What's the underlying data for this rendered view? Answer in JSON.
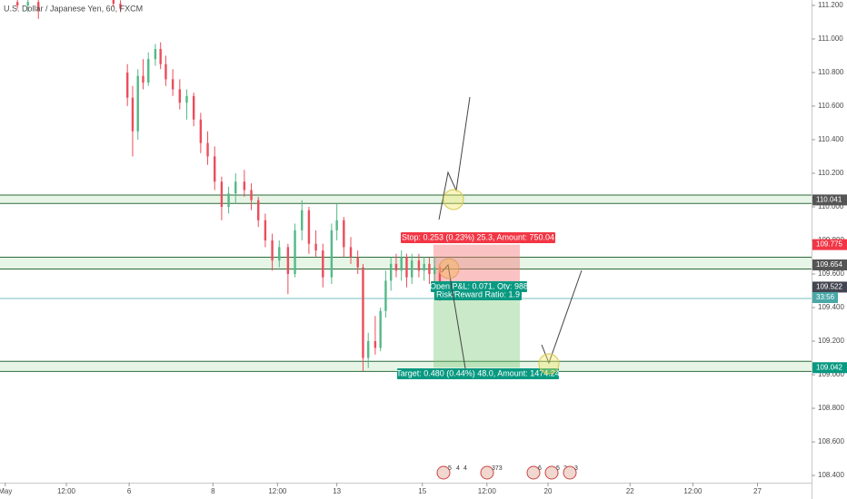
{
  "chart_data": {
    "type": "candlestick",
    "title": "U.S. Dollar / Japanese Yen, 60, FXCM",
    "xlim": [
      0,
      465
    ],
    "xticks": [
      {
        "value": 3,
        "label": "May"
      },
      {
        "value": 38,
        "label": "12:00"
      },
      {
        "value": 74,
        "label": "6"
      },
      {
        "value": 122,
        "label": "8"
      },
      {
        "value": 159,
        "label": "12:00"
      },
      {
        "value": 193,
        "label": "13"
      },
      {
        "value": 242,
        "label": "15"
      },
      {
        "value": 279,
        "label": "12:00"
      },
      {
        "value": 314,
        "label": "20"
      },
      {
        "value": 361,
        "label": "22"
      },
      {
        "value": 397,
        "label": "12:00"
      },
      {
        "value": 434,
        "label": "27"
      }
    ],
    "ylim": [
      108.357,
      111.232
    ],
    "yticks": [
      {
        "value": 111.2,
        "label": "111.200"
      },
      {
        "value": 111.0,
        "label": "111.000"
      },
      {
        "value": 110.8,
        "label": "110.800"
      },
      {
        "value": 110.6,
        "label": "110.600"
      },
      {
        "value": 110.4,
        "label": "110.400"
      },
      {
        "value": 110.2,
        "label": "110.200"
      },
      {
        "value": 110.0,
        "label": "110.000"
      },
      {
        "value": 109.8,
        "label": "109.800"
      },
      {
        "value": 109.6,
        "label": "109.600"
      },
      {
        "value": 109.4,
        "label": "109.400"
      },
      {
        "value": 109.2,
        "label": "109.200"
      },
      {
        "value": 109.0,
        "label": "109.000"
      },
      {
        "value": 108.8,
        "label": "108.800"
      },
      {
        "value": 108.6,
        "label": "108.600"
      },
      {
        "value": 108.4,
        "label": "108.400"
      }
    ],
    "up_color": "#53b987",
    "down_color": "#eb4d5c",
    "x": [
      10,
      16,
      22,
      65,
      69,
      73,
      76,
      79,
      82,
      85,
      89,
      92,
      95,
      99,
      103,
      107,
      111,
      115,
      119,
      123,
      127,
      131,
      135,
      140,
      144,
      148,
      152,
      156,
      160,
      165,
      169,
      173,
      177,
      181,
      185,
      190,
      193,
      197,
      201,
      205,
      208,
      211,
      215,
      218,
      221,
      224,
      227,
      230,
      233,
      236,
      240,
      243,
      246,
      249,
      252
    ],
    "open": [
      111.22,
      111.2,
      111.22,
      111.24,
      111.21,
      110.8,
      110.65,
      110.45,
      110.78,
      110.74,
      110.88,
      110.94,
      110.85,
      110.76,
      110.7,
      110.62,
      110.66,
      110.52,
      110.38,
      110.3,
      110.15,
      110.0,
      110.08,
      110.15,
      110.1,
      110.04,
      109.92,
      109.8,
      109.68,
      109.76,
      109.6,
      109.86,
      109.98,
      109.78,
      109.74,
      109.58,
      109.86,
      109.92,
      109.76,
      109.7,
      109.64,
      109.1,
      109.2,
      109.16,
      109.38,
      109.56,
      109.66,
      109.62,
      109.7,
      109.58,
      109.68,
      109.62,
      109.66,
      109.6,
      109.64
    ],
    "high": [
      111.26,
      111.24,
      111.25,
      111.26,
      111.23,
      110.85,
      110.72,
      110.82,
      110.88,
      110.92,
      110.97,
      110.98,
      110.9,
      110.82,
      110.76,
      110.7,
      110.68,
      110.56,
      110.45,
      110.36,
      110.18,
      110.12,
      110.2,
      110.22,
      110.14,
      110.06,
      109.96,
      109.84,
      109.8,
      109.78,
      109.9,
      110.04,
      110.0,
      109.86,
      109.78,
      109.9,
      110.02,
      109.94,
      109.82,
      109.74,
      109.66,
      109.25,
      109.35,
      109.4,
      109.62,
      109.7,
      109.72,
      109.74,
      109.72,
      109.72,
      109.72,
      109.7,
      109.7,
      109.7,
      109.66
    ],
    "low": [
      111.18,
      111.16,
      111.12,
      111.19,
      111.16,
      110.6,
      110.3,
      110.4,
      110.7,
      110.72,
      110.84,
      110.82,
      110.72,
      110.66,
      110.58,
      110.52,
      110.48,
      110.32,
      110.25,
      110.1,
      109.92,
      109.96,
      110.02,
      110.06,
      109.98,
      109.88,
      109.76,
      109.62,
      109.64,
      109.48,
      109.58,
      109.8,
      109.72,
      109.7,
      109.52,
      109.54,
      109.8,
      109.7,
      109.66,
      109.6,
      109.02,
      109.04,
      109.12,
      109.14,
      109.34,
      109.5,
      109.58,
      109.56,
      109.52,
      109.54,
      109.58,
      109.56,
      109.54,
      109.52,
      109.44
    ],
    "close": [
      111.2,
      111.22,
      111.17,
      111.21,
      111.18,
      110.65,
      110.45,
      110.78,
      110.74,
      110.88,
      110.94,
      110.85,
      110.76,
      110.7,
      110.62,
      110.66,
      110.52,
      110.38,
      110.3,
      110.15,
      110.0,
      110.08,
      110.15,
      110.1,
      110.04,
      109.92,
      109.8,
      109.68,
      109.76,
      109.6,
      109.86,
      109.98,
      109.78,
      109.74,
      109.58,
      109.86,
      109.92,
      109.76,
      109.7,
      109.64,
      109.1,
      109.2,
      109.16,
      109.38,
      109.56,
      109.66,
      109.62,
      109.7,
      109.58,
      109.68,
      109.62,
      109.66,
      109.6,
      109.64,
      109.52
    ],
    "zones": [
      [
        110.02,
        110.07
      ],
      [
        109.63,
        109.7
      ],
      [
        109.02,
        109.08
      ]
    ],
    "zone_color": "#d7eed7",
    "price_labels": [
      {
        "value": 110.041,
        "color": "#555555"
      },
      {
        "value": 109.775,
        "color": "#f23645"
      },
      {
        "value": 109.654,
        "color": "#555555"
      },
      {
        "value": 109.522,
        "color": "#434651"
      },
      {
        "value": 109.042,
        "color": "#089981"
      }
    ],
    "countdown": "33:56",
    "position": {
      "entry": 109.522,
      "stop": 109.775,
      "target": 109.042,
      "stop_label": "Stop: 0.253 (0.23%) 25.3, Amount: 750.04",
      "pnl_label": "Open P&L: 0.071, Qty: 988",
      "rr_label": "Risk/Reward Ratio: 1.9",
      "target_label": "Target: 0.480 (0.44%) 48.0, Amount: 1474.24"
    },
    "event_labels": [
      "5",
      "4",
      "4",
      "373",
      "6",
      "5",
      "2",
      "3"
    ]
  }
}
